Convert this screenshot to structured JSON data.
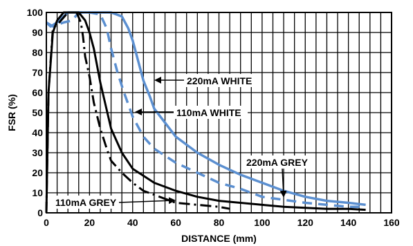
{
  "chart_data": {
    "type": "line",
    "xlabel": "DISTANCE (mm)",
    "ylabel": "FSR (%)",
    "xlim": [
      0,
      160
    ],
    "ylim": [
      0,
      100
    ],
    "x_ticks": [
      "0",
      "20",
      "40",
      "60",
      "80",
      "100",
      "120",
      "140",
      "160"
    ],
    "y_ticks": [
      "0",
      "10",
      "20",
      "30",
      "40",
      "50",
      "60",
      "70",
      "80",
      "90",
      "100"
    ],
    "grid": true,
    "series": [
      {
        "name": "220mA WHITE",
        "color": "#5b8fd0",
        "style": "solid",
        "x": [
          0,
          2,
          5,
          10,
          15,
          20,
          25,
          30,
          35,
          38,
          40,
          42,
          45,
          48,
          50,
          55,
          60,
          70,
          80,
          90,
          100,
          110,
          120,
          130,
          140,
          148
        ],
        "y": [
          95,
          93,
          95,
          100,
          100,
          100,
          100,
          100,
          98,
          92,
          86,
          78,
          66,
          58,
          52,
          45,
          38,
          30,
          24,
          19,
          15,
          11,
          8,
          6,
          5,
          4
        ]
      },
      {
        "name": "110mA WHITE",
        "color": "#5b8fd0",
        "style": "dashed",
        "x": [
          0,
          3,
          8,
          12,
          15,
          20,
          25,
          28,
          30,
          33,
          36,
          40,
          45,
          50,
          60,
          70,
          80,
          90,
          100,
          120,
          140,
          148
        ],
        "y": [
          95,
          93,
          95,
          96,
          100,
          100,
          99,
          92,
          82,
          70,
          60,
          48,
          38,
          32,
          25,
          20,
          15,
          12,
          8,
          5,
          3,
          3
        ]
      },
      {
        "name": "220mA GREY",
        "color": "#000000",
        "style": "solid",
        "x": [
          0,
          1,
          3,
          5,
          8,
          10,
          15,
          18,
          20,
          22,
          25,
          30,
          35,
          40,
          50,
          60,
          70,
          80,
          90,
          100,
          110,
          120,
          130,
          140,
          148
        ],
        "y": [
          0,
          60,
          90,
          96,
          100,
          100,
          100,
          96,
          90,
          82,
          65,
          42,
          30,
          22,
          15,
          11,
          8,
          6,
          5,
          4,
          3,
          2.5,
          2,
          2,
          1.5
        ]
      },
      {
        "name": "110mA GREY",
        "color": "#000000",
        "style": "dashdot",
        "x": [
          0,
          1,
          3,
          6,
          10,
          14,
          16,
          17,
          18,
          20,
          22,
          25,
          28,
          30,
          35,
          40,
          45,
          50,
          60,
          70,
          80,
          85
        ],
        "y": [
          0,
          60,
          92,
          95,
          100,
          100,
          95,
          88,
          78,
          68,
          55,
          42,
          32,
          26,
          20,
          15,
          11,
          9,
          5,
          4,
          3,
          2
        ]
      }
    ],
    "annotations": [
      {
        "text": "220mA WHITE"
      },
      {
        "text": "110mA WHITE"
      },
      {
        "text": "220mA GREY"
      },
      {
        "text": "110mA GREY"
      }
    ]
  }
}
